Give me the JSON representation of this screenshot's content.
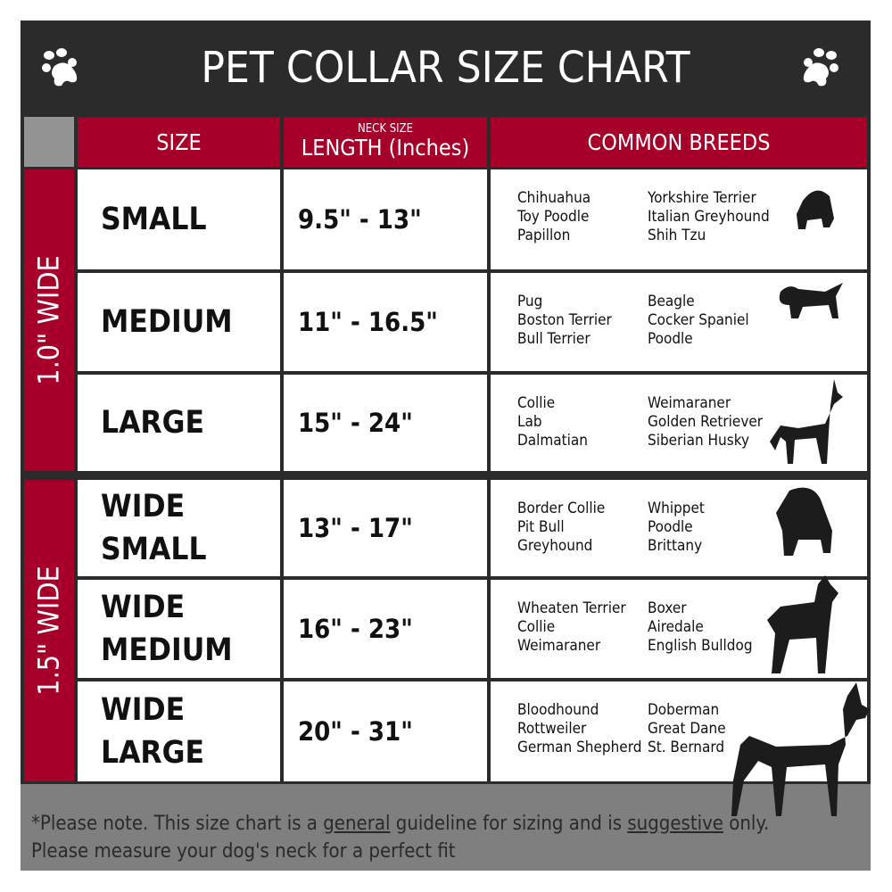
{
  "title": "PET COLLAR SIZE CHART",
  "headers": {
    "size": "SIZE",
    "length_small": "NECK SIZE",
    "length": "LENGTH (Inches)",
    "breeds": "COMMON BREEDS"
  },
  "groups": [
    "1.0\" WIDE",
    "1.5\" WIDE"
  ],
  "rows": [
    {
      "size": "SMALL",
      "length": "9.5\" - 13\"",
      "breeds_a": [
        "Chihuahua",
        "Toy Poodle",
        "Papillon"
      ],
      "breeds_b": [
        "Yorkshire Terrier",
        "Italian Greyhound",
        "Shih Tzu"
      ]
    },
    {
      "size": "MEDIUM",
      "length": "11\" - 16.5\"",
      "breeds_a": [
        "Pug",
        "Boston Terrier",
        "Bull Terrier"
      ],
      "breeds_b": [
        "Beagle",
        "Cocker Spaniel",
        "Poodle"
      ]
    },
    {
      "size": "LARGE",
      "length": "15\" - 24\"",
      "breeds_a": [
        "Collie",
        "Lab",
        "Dalmatian"
      ],
      "breeds_b": [
        "Weimaraner",
        "Golden Retriever",
        "Siberian Husky"
      ]
    },
    {
      "size": "WIDE SMALL",
      "length": "13\" - 17\"",
      "breeds_a": [
        "Border Collie",
        "Pit Bull",
        "Greyhound"
      ],
      "breeds_b": [
        "Whippet",
        "Poodle",
        "Brittany"
      ]
    },
    {
      "size": "WIDE MEDIUM",
      "length": "16\" - 23\"",
      "breeds_a": [
        "Wheaten Terrier",
        "Collie",
        "Weimaraner"
      ],
      "breeds_b": [
        "Boxer",
        "Airedale",
        "English Bulldog"
      ]
    },
    {
      "size": "WIDE LARGE",
      "length": "20\" - 31\"",
      "breeds_a": [
        "Bloodhound",
        "Rottweiler",
        "German Shepherd"
      ],
      "breeds_b": [
        "Doberman",
        "Great Dane",
        "St. Bernard"
      ]
    }
  ],
  "note": {
    "part1": "*Please note. This size chart is a ",
    "general": "general",
    "part2": " guideline for sizing and is ",
    "suggestive": "suggestive",
    "part3": " only.",
    "line2": "Please measure your dog's neck for a perfect fit"
  },
  "colors": {
    "title_bg": "#2b2b2b",
    "accent": "#a6002a",
    "footer": "#7f7f80"
  },
  "icons": [
    "paw-icon",
    "dog-silhouette-icon"
  ]
}
